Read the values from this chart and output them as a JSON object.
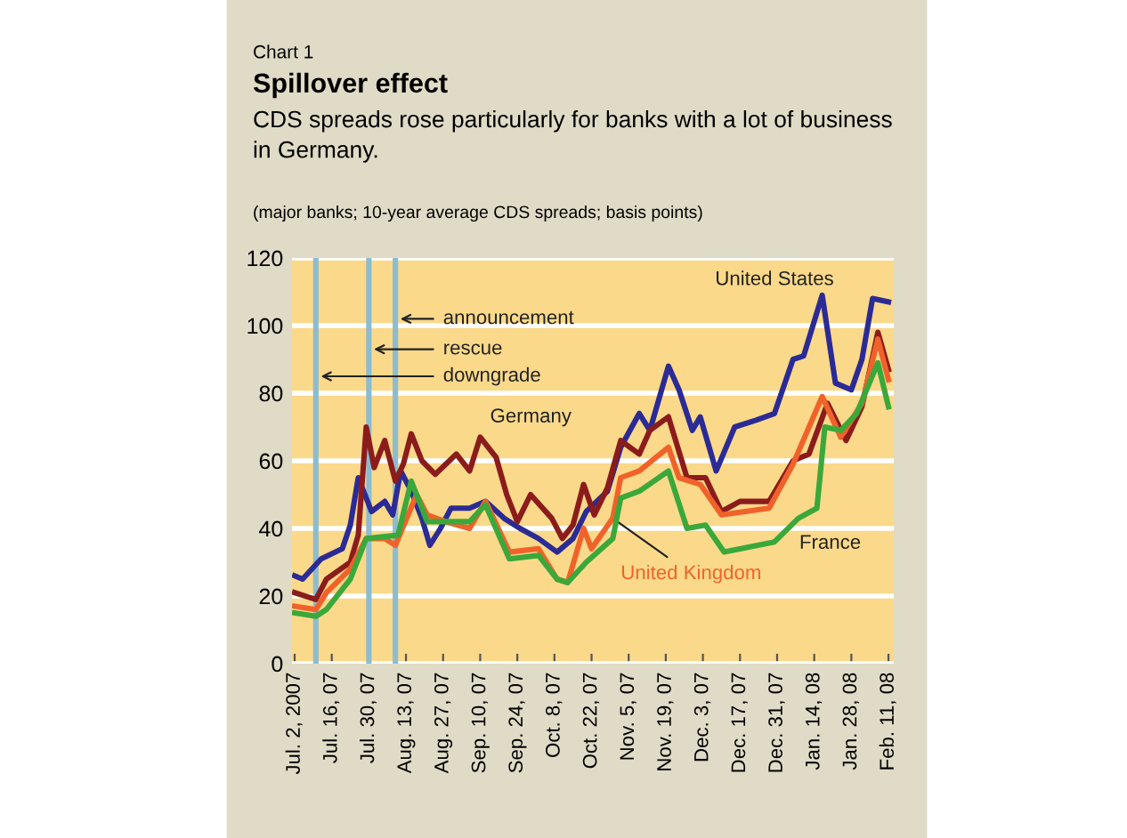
{
  "chart_data": {
    "type": "line",
    "title": "Spillover effect",
    "subtitle": "CDS spreads rose particularly for banks with a lot of business in Germany.",
    "annotations": [
      "Chart 1",
      "(major banks; 10-year average CDS spreads; basis points)"
    ],
    "xlim": [
      "2007-07-01",
      "2008-02-13"
    ],
    "ylim": [
      0,
      120
    ],
    "yticks": [
      0,
      20,
      40,
      60,
      80,
      100,
      120
    ],
    "xticks": [
      {
        "value": "2007-07-02",
        "label": "Jul. 2, 2007"
      },
      {
        "value": "2007-07-16",
        "label": "Jul. 16, 07"
      },
      {
        "value": "2007-07-30",
        "label": "Jul. 30, 07"
      },
      {
        "value": "2007-08-13",
        "label": "Aug. 13, 07"
      },
      {
        "value": "2007-08-27",
        "label": "Aug. 27, 07"
      },
      {
        "value": "2007-09-10",
        "label": "Sep. 10, 07"
      },
      {
        "value": "2007-09-24",
        "label": "Sep. 24, 07"
      },
      {
        "value": "2007-10-08",
        "label": "Oct. 8, 07"
      },
      {
        "value": "2007-10-22",
        "label": "Oct. 22, 07"
      },
      {
        "value": "2007-11-05",
        "label": "Nov. 5, 07"
      },
      {
        "value": "2007-11-19",
        "label": "Nov. 19, 07"
      },
      {
        "value": "2007-12-03",
        "label": "Dec. 3, 07"
      },
      {
        "value": "2007-12-17",
        "label": "Dec. 17, 07"
      },
      {
        "value": "2007-12-31",
        "label": "Dec. 31, 07"
      },
      {
        "value": "2008-01-14",
        "label": "Jan. 14, 08"
      },
      {
        "value": "2008-01-28",
        "label": "Jan. 28, 08"
      },
      {
        "value": "2008-02-11",
        "label": "Feb. 11, 08"
      }
    ],
    "grid": "y",
    "marker": "none",
    "line_style": "solid",
    "ref_lines": [
      {
        "axis": "x",
        "value": "2007-07-10",
        "label": "downgrade",
        "color": "#8cbcd0"
      },
      {
        "axis": "x",
        "value": "2007-07-30",
        "label": "rescue",
        "color": "#8cbcd0"
      },
      {
        "axis": "x",
        "value": "2007-08-09",
        "label": "announcement",
        "color": "#8cbcd0"
      }
    ],
    "series": [
      {
        "name": "United States",
        "color": "#2b2b96",
        "x": [
          "2007-07-02",
          "2007-07-05",
          "2007-07-12",
          "2007-07-20",
          "2007-07-23",
          "2007-07-26",
          "2007-07-31",
          "2007-08-05",
          "2007-08-08",
          "2007-08-11",
          "2007-08-15",
          "2007-08-19",
          "2007-08-22",
          "2007-08-26",
          "2007-08-30",
          "2007-09-06",
          "2007-09-12",
          "2007-09-19",
          "2007-09-25",
          "2007-10-02",
          "2007-10-09",
          "2007-10-15",
          "2007-10-20",
          "2007-10-28",
          "2007-11-02",
          "2007-11-09",
          "2007-11-13",
          "2007-11-20",
          "2007-11-24",
          "2007-11-29",
          "2007-12-02",
          "2007-12-08",
          "2007-12-15",
          "2007-12-23",
          "2007-12-30",
          "2008-01-06",
          "2008-01-10",
          "2008-01-17",
          "2008-01-22",
          "2008-01-28",
          "2008-02-01",
          "2008-02-05",
          "2008-02-11"
        ],
        "values": [
          26,
          25,
          31,
          34,
          41,
          55,
          45,
          48,
          44,
          57,
          51,
          43,
          35,
          40,
          46,
          46,
          48,
          43,
          40,
          37,
          33,
          37,
          45,
          51,
          64,
          74,
          69,
          88,
          81,
          69,
          73,
          57,
          70,
          72,
          74,
          90,
          91,
          109,
          83,
          81,
          90,
          108,
          107
        ]
      },
      {
        "name": "Germany",
        "color": "#8b1c1c",
        "x": [
          "2007-07-02",
          "2007-07-10",
          "2007-07-14",
          "2007-07-23",
          "2007-07-26",
          "2007-07-29",
          "2007-08-01",
          "2007-08-05",
          "2007-08-09",
          "2007-08-12",
          "2007-08-15",
          "2007-08-19",
          "2007-08-24",
          "2007-09-01",
          "2007-09-06",
          "2007-09-10",
          "2007-09-16",
          "2007-09-20",
          "2007-09-24",
          "2007-09-29",
          "2007-10-07",
          "2007-10-11",
          "2007-10-15",
          "2007-10-19",
          "2007-10-23",
          "2007-10-28",
          "2007-11-02",
          "2007-11-09",
          "2007-11-13",
          "2007-11-20",
          "2007-11-27",
          "2007-12-04",
          "2007-12-10",
          "2007-12-17",
          "2007-12-28",
          "2008-01-06",
          "2008-01-12",
          "2008-01-19",
          "2008-01-26",
          "2008-02-01",
          "2008-02-07",
          "2008-02-11"
        ],
        "values": [
          21,
          19,
          25,
          30,
          38,
          70,
          58,
          66,
          54,
          59,
          68,
          60,
          56,
          62,
          57,
          67,
          61,
          50,
          42,
          50,
          43,
          37,
          41,
          53,
          44,
          52,
          66,
          62,
          69,
          73,
          55,
          55,
          45,
          48,
          48,
          60,
          62,
          77,
          66,
          76,
          98,
          87
        ]
      },
      {
        "name": "United Kingdom",
        "color": "#f0622a",
        "x": [
          "2007-07-02",
          "2007-07-10",
          "2007-07-14",
          "2007-07-23",
          "2007-07-29",
          "2007-08-05",
          "2007-08-09",
          "2007-08-17",
          "2007-08-21",
          "2007-08-28",
          "2007-09-06",
          "2007-09-12",
          "2007-09-21",
          "2007-10-02",
          "2007-10-09",
          "2007-10-13",
          "2007-10-19",
          "2007-10-22",
          "2007-10-30",
          "2007-11-02",
          "2007-11-09",
          "2007-11-20",
          "2007-11-24",
          "2007-12-02",
          "2007-12-10",
          "2007-12-28",
          "2008-01-06",
          "2008-01-17",
          "2008-01-24",
          "2008-02-01",
          "2008-02-07",
          "2008-02-11"
        ],
        "values": [
          17,
          16,
          21,
          28,
          37,
          37,
          35,
          50,
          44,
          42,
          40,
          48,
          33,
          34,
          25,
          24,
          40,
          34,
          43,
          55,
          57,
          64,
          55,
          53,
          44,
          46,
          59,
          79,
          67,
          77,
          96,
          84
        ]
      },
      {
        "name": "France",
        "color": "#3aa83a",
        "x": [
          "2007-07-02",
          "2007-07-10",
          "2007-07-14",
          "2007-07-23",
          "2007-07-29",
          "2007-08-10",
          "2007-08-15",
          "2007-08-21",
          "2007-09-06",
          "2007-09-12",
          "2007-09-21",
          "2007-10-02",
          "2007-10-09",
          "2007-10-13",
          "2007-10-20",
          "2007-10-30",
          "2007-11-02",
          "2007-11-09",
          "2007-11-20",
          "2007-11-27",
          "2007-12-04",
          "2007-12-11",
          "2007-12-30",
          "2008-01-08",
          "2008-01-15",
          "2008-01-18",
          "2008-01-24",
          "2008-01-30",
          "2008-02-07",
          "2008-02-11"
        ],
        "values": [
          15,
          14,
          16,
          25,
          37,
          38,
          54,
          42,
          42,
          47,
          31,
          32,
          25,
          24,
          30,
          37,
          49,
          51,
          57,
          40,
          41,
          33,
          36,
          43,
          46,
          70,
          69,
          74,
          89,
          76
        ]
      }
    ]
  }
}
